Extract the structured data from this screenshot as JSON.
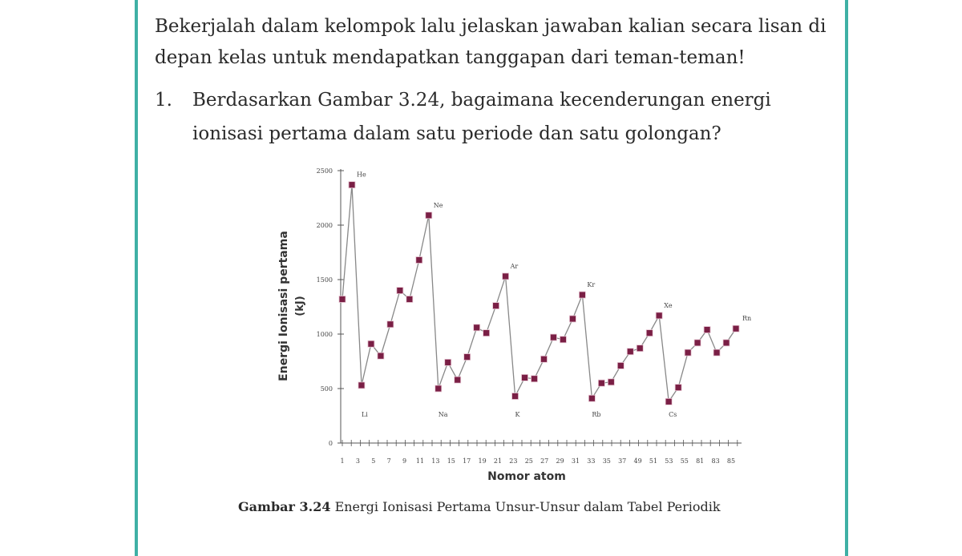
{
  "document": {
    "intro": "Bekerjalah dalam kelompok lalu jelaskan jawaban kalian secara lisan di depan kelas untuk mendapatkan tanggapan dari teman-teman!",
    "question_number": "1.",
    "question_text": "Berdasarkan Gambar 3.24, bagaimana kecenderungan energi ionisasi pertama dalam satu periode dan satu golongan?",
    "caption_label": "Gambar 3.24",
    "caption_text": " Energi Ionisasi Pertama Unsur-Unsur dalam Tabel Periodik"
  },
  "colors": {
    "frame": "#3fb0a5",
    "marker": "#7a1f45",
    "line": "#888888"
  },
  "chart_data": {
    "type": "line",
    "xlabel": "Nomor atom",
    "ylabel": "Energi Ionisasi pertama (kJ)",
    "ylim": [
      0,
      2500
    ],
    "yticks": [
      0,
      500,
      1000,
      1500,
      2000,
      2500
    ],
    "xticks": [
      "1",
      "3",
      "5",
      "7",
      "9",
      "11",
      "13",
      "15",
      "17",
      "19",
      "21",
      "23",
      "25",
      "27",
      "29",
      "31",
      "33",
      "35",
      "37",
      "49",
      "51",
      "53",
      "55",
      "81",
      "83",
      "85"
    ],
    "values": [
      1320,
      2370,
      530,
      910,
      800,
      1090,
      1400,
      1320,
      1680,
      2090,
      500,
      740,
      580,
      790,
      1060,
      1010,
      1260,
      1530,
      430,
      600,
      590,
      770,
      970,
      950,
      1140,
      1360,
      410,
      550,
      560,
      710,
      840,
      870,
      1010,
      1170,
      380,
      510,
      830,
      920,
      1040,
      830,
      920,
      1050
    ],
    "peak_labels": [
      {
        "index": 1,
        "text": "He"
      },
      {
        "index": 9,
        "text": "Ne"
      },
      {
        "index": 17,
        "text": "Ar"
      },
      {
        "index": 25,
        "text": "Kr"
      },
      {
        "index": 33,
        "text": "Xe"
      },
      {
        "index": 41,
        "text": "Rn"
      }
    ],
    "trough_labels": [
      {
        "index": 2,
        "text": "Li"
      },
      {
        "index": 10,
        "text": "Na"
      },
      {
        "index": 18,
        "text": "K"
      },
      {
        "index": 26,
        "text": "Rb"
      },
      {
        "index": 34,
        "text": "Cs"
      }
    ]
  }
}
